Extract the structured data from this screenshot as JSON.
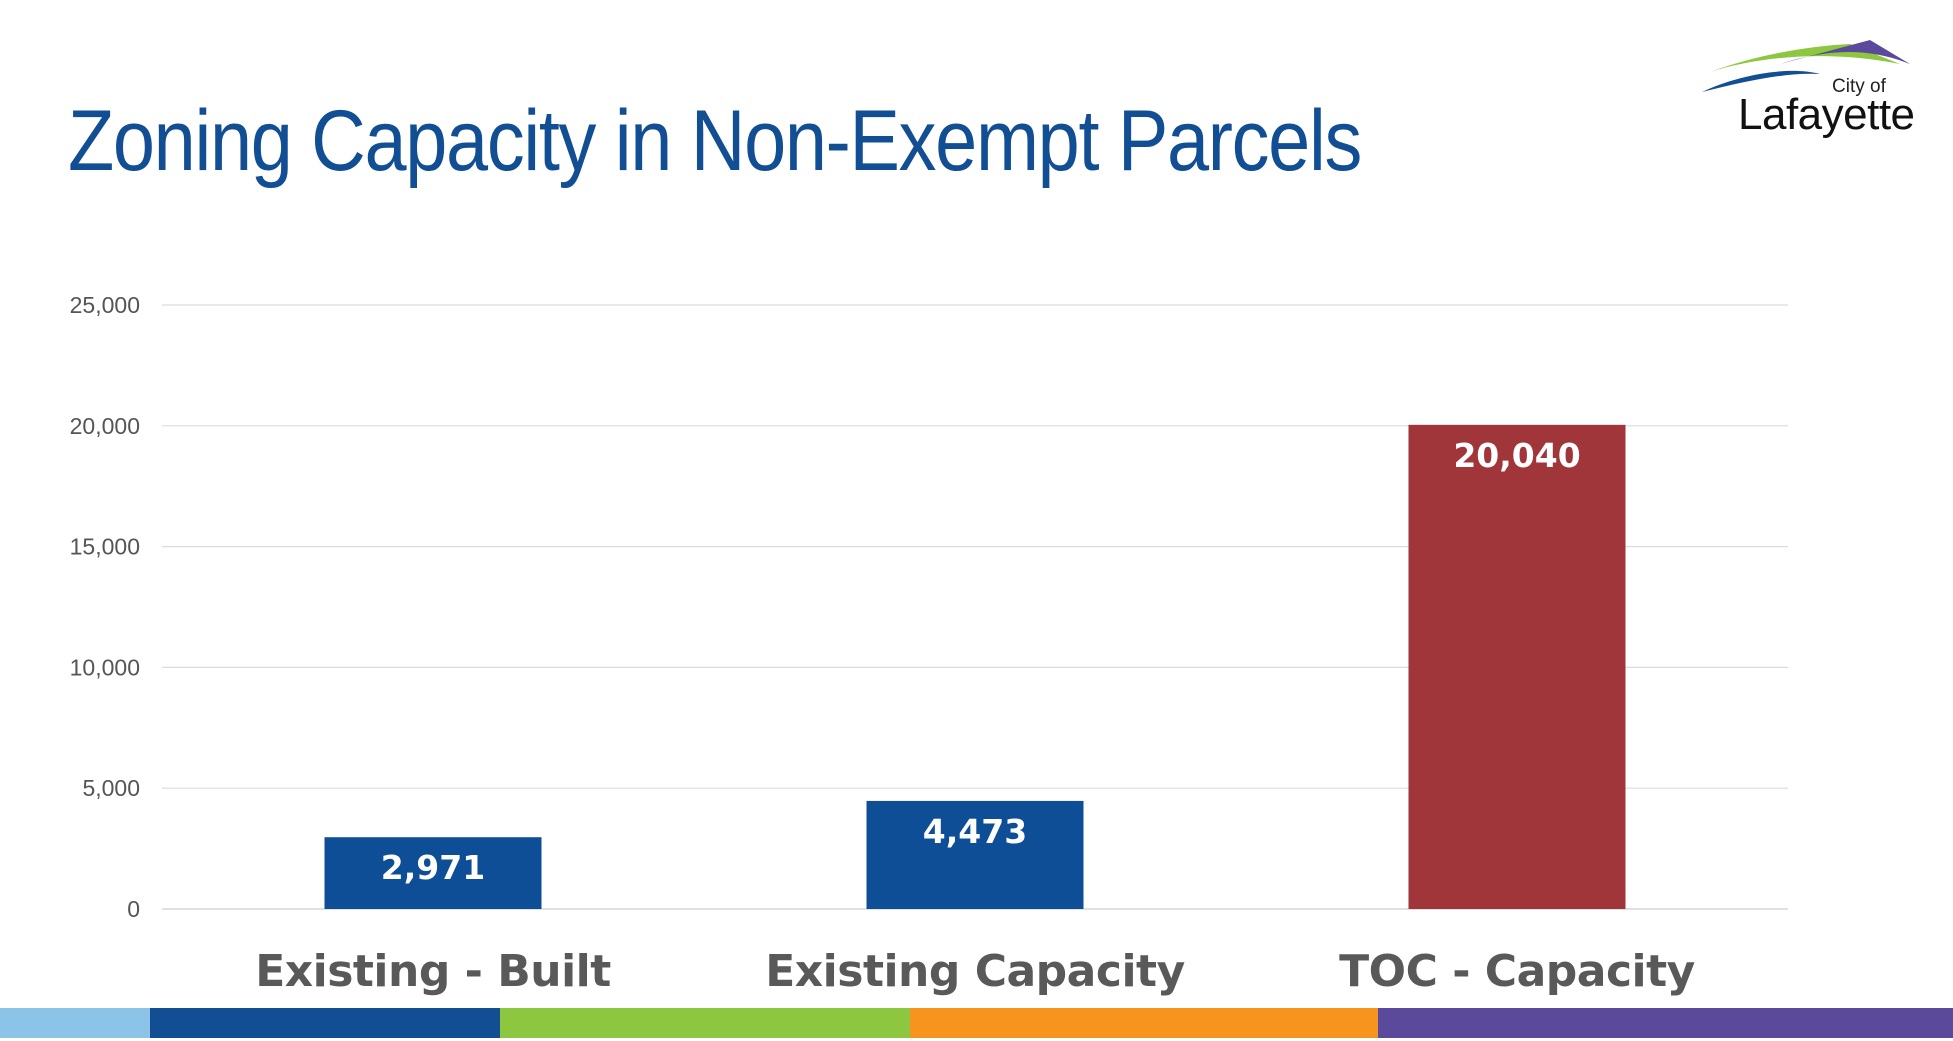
{
  "slide": {
    "title": "Zoning Capacity in Non-Exempt Parcels"
  },
  "logo": {
    "small_text": "City of",
    "big_text": "Lafayette",
    "colors": {
      "green": "#8dc63f",
      "purple": "#5b4a9b",
      "blue": "#124e94"
    }
  },
  "chart_data": {
    "type": "bar",
    "categories": [
      "Existing - Built",
      "Existing Capacity",
      "TOC - Capacity"
    ],
    "values": [
      2971,
      4473,
      20040
    ],
    "value_labels": [
      "2,971",
      "4,473",
      "20,040"
    ],
    "bar_colors": [
      "#0e4e96",
      "#0e4e96",
      "#a0353a"
    ],
    "y_ticks": [
      0,
      5000,
      10000,
      15000,
      20000,
      25000
    ],
    "y_tick_labels": [
      "0",
      "5,000",
      "10,000",
      "15,000",
      "20,000",
      "25,000"
    ],
    "ylim": [
      0,
      25000
    ],
    "grid": true,
    "legend": "none"
  },
  "footer_colors": [
    "#8cc4e8",
    "#124e94",
    "#8dc63f",
    "#f7941d",
    "#5b4a9b"
  ]
}
